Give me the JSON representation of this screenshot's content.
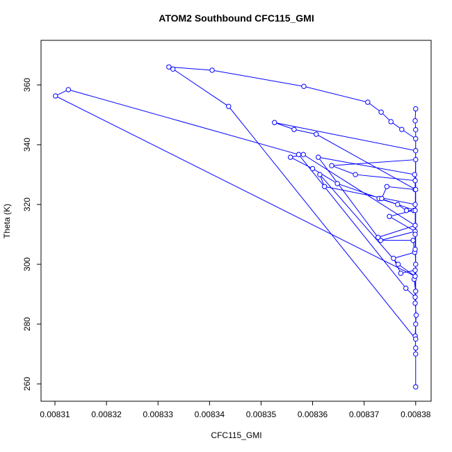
{
  "chart_data": {
    "type": "line",
    "title": "ATOM2 Southbound CFC115_GMI",
    "x_label": "CFC115_GMI",
    "y_label": "Theta (K)",
    "color": "blue",
    "marker": "circle",
    "x": [
      0.00838,
      0.00838,
      0.00838,
      0.0083799,
      0.00838,
      0.0083801,
      0.0083799,
      0.00838,
      0.0083797,
      0.0083799,
      0.0083771,
      0.0083757,
      0.0083798,
      0.0083795,
      0.0083732,
      0.0083799,
      0.0083749,
      0.0083796,
      0.0083782,
      0.0083765,
      0.0083729,
      0.0083734,
      0.0083744,
      0.0083799,
      0.0083799,
      0.0083683,
      0.0083637,
      0.00838,
      0.00838,
      0.0083526,
      0.0083564,
      0.0083607,
      0.00838,
      0.0083798,
      0.0083611,
      0.0083727,
      0.0083799,
      0.0083582,
      0.0083557,
      0.00836,
      0.0083648,
      0.0083799,
      0.0083799,
      0.0083623,
      0.0083614,
      0.0083766,
      0.0083799,
      0.0083101,
      0.0083126,
      0.0083573,
      0.0083781,
      0.0083799,
      0.00838,
      0.0083799,
      0.0083799,
      0.00838,
      0.0083773,
      0.0083752,
      0.0083733,
      0.0083707,
      0.0083583,
      0.0083405,
      0.0083321,
      0.0083329,
      0.0083437,
      0.00838,
      0.00838,
      0.0083799,
      0.00838
    ],
    "values": [
      259,
      270,
      272,
      276,
      280,
      283,
      287,
      291,
      295,
      298,
      297,
      302,
      304,
      308,
      308,
      311,
      316,
      318,
      318,
      320,
      322,
      322,
      326,
      325,
      328,
      330,
      333,
      335,
      338,
      347.4,
      345.1,
      343.5,
      325,
      330,
      335.8,
      309,
      313,
      336.7,
      335.8,
      332,
      327,
      318,
      320,
      326,
      330,
      300,
      296,
      356.3,
      358.4,
      336.7,
      292,
      289,
      300,
      305,
      310,
      342,
      345.1,
      347.7,
      350.9,
      354.2,
      359.5,
      364.9,
      366,
      365.3,
      352.8,
      275,
      345,
      348,
      352
    ],
    "xlim": [
      0.0083073,
      0.008383
    ],
    "ylim": [
      254.2,
      374.9
    ],
    "xticks": [
      0.00831,
      0.00832,
      0.00833,
      0.00834,
      0.00835,
      0.00836,
      0.00837,
      0.00838
    ],
    "yticks": [
      260,
      280,
      300,
      320,
      340,
      360
    ]
  }
}
